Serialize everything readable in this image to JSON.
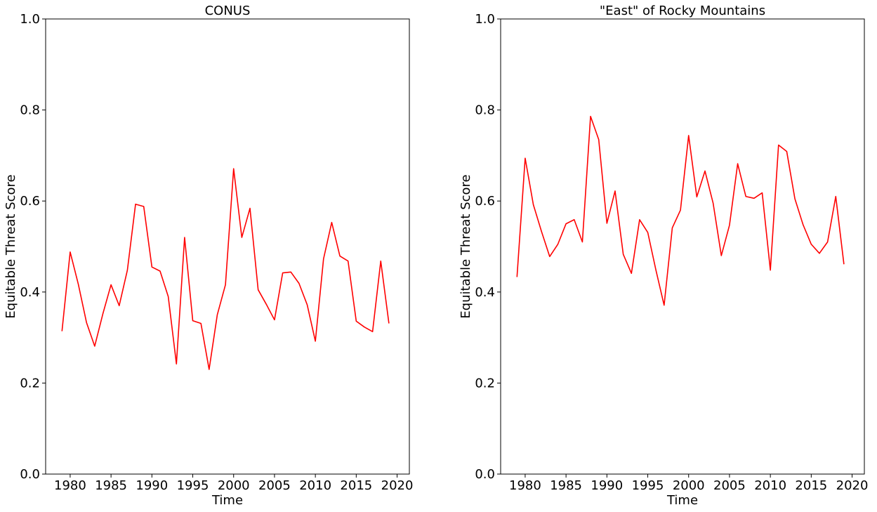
{
  "chart_data": [
    {
      "type": "line",
      "title": "CONUS",
      "xlabel": "Time",
      "ylabel": "Equitable Threat Score",
      "xlim": [
        1977,
        2021.5
      ],
      "ylim": [
        0,
        1
      ],
      "xticks": [
        1980,
        1985,
        1990,
        1995,
        2000,
        2005,
        2010,
        2015,
        2020
      ],
      "yticks": [
        0.0,
        0.2,
        0.4,
        0.6,
        0.8,
        1.0
      ],
      "ytick_labels": [
        "0.0",
        "0.2",
        "0.4",
        "0.6",
        "0.8",
        "1.0"
      ],
      "grid": false,
      "series": [
        {
          "color": "#ff0000",
          "x": [
            1979,
            1980,
            1981,
            1982,
            1983,
            1984,
            1985,
            1986,
            1987,
            1988,
            1989,
            1990,
            1991,
            1992,
            1993,
            1994,
            1995,
            1996,
            1997,
            1998,
            1999,
            2000,
            2001,
            2002,
            2003,
            2004,
            2005,
            2006,
            2007,
            2008,
            2009,
            2010,
            2011,
            2012,
            2013,
            2014,
            2015,
            2016,
            2017,
            2018,
            2019
          ],
          "y": [
            0.314,
            0.488,
            0.417,
            0.333,
            0.281,
            0.352,
            0.416,
            0.37,
            0.448,
            0.593,
            0.588,
            0.455,
            0.446,
            0.39,
            0.242,
            0.52,
            0.337,
            0.331,
            0.23,
            0.35,
            0.416,
            0.671,
            0.52,
            0.584,
            0.405,
            0.373,
            0.339,
            0.442,
            0.444,
            0.419,
            0.372,
            0.292,
            0.473,
            0.553,
            0.479,
            0.468,
            0.336,
            0.323,
            0.313,
            0.468,
            0.331
          ]
        }
      ]
    },
    {
      "type": "line",
      "title": "\"East\" of Rocky Mountains",
      "xlabel": "Time",
      "ylabel": "Equitable Threat Score",
      "xlim": [
        1977,
        2021.5
      ],
      "ylim": [
        0,
        1
      ],
      "xticks": [
        1980,
        1985,
        1990,
        1995,
        2000,
        2005,
        2010,
        2015,
        2020
      ],
      "yticks": [
        0.0,
        0.2,
        0.4,
        0.6,
        0.8,
        1.0
      ],
      "ytick_labels": [
        "0.0",
        "0.2",
        "0.4",
        "0.6",
        "0.8",
        "1.0"
      ],
      "grid": false,
      "series": [
        {
          "color": "#ff0000",
          "x": [
            1979,
            1980,
            1981,
            1982,
            1983,
            1984,
            1985,
            1986,
            1987,
            1988,
            1989,
            1990,
            1991,
            1992,
            1993,
            1994,
            1995,
            1996,
            1997,
            1998,
            1999,
            2000,
            2001,
            2002,
            2003,
            2004,
            2005,
            2006,
            2007,
            2008,
            2009,
            2010,
            2011,
            2012,
            2013,
            2014,
            2015,
            2016,
            2017,
            2018,
            2019
          ],
          "y": [
            0.433,
            0.694,
            0.592,
            0.533,
            0.478,
            0.505,
            0.55,
            0.559,
            0.51,
            0.786,
            0.735,
            0.551,
            0.622,
            0.483,
            0.441,
            0.559,
            0.531,
            0.448,
            0.371,
            0.541,
            0.58,
            0.744,
            0.609,
            0.666,
            0.595,
            0.48,
            0.547,
            0.682,
            0.61,
            0.606,
            0.618,
            0.448,
            0.723,
            0.709,
            0.605,
            0.548,
            0.505,
            0.485,
            0.51,
            0.61,
            0.461
          ]
        }
      ]
    }
  ]
}
